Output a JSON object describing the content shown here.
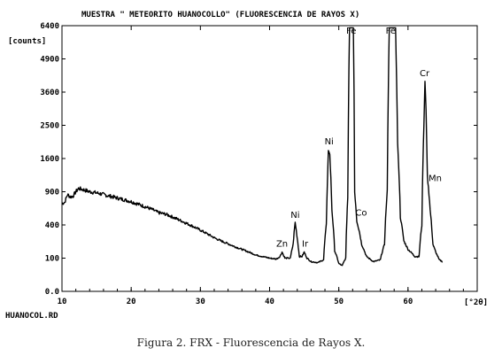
{
  "chart_data": {
    "type": "line",
    "title": "MUESTRA \" METEORITO HUANOCOLLO\" (FLUORESCENCIA DE RAYOS X)",
    "ylabel": "[counts]",
    "xlabel": "[°2θ]",
    "file_label": "HUANOCOL.RD",
    "x_range": [
      10,
      70
    ],
    "y_range": [
      0,
      6400
    ],
    "y_scale": "sqrt",
    "x_ticks": [
      {
        "value": 10,
        "label": "10"
      },
      {
        "value": 20,
        "label": "20"
      },
      {
        "value": 30,
        "label": "30"
      },
      {
        "value": 40,
        "label": "40"
      },
      {
        "value": 50,
        "label": "50"
      },
      {
        "value": 60,
        "label": "60"
      }
    ],
    "y_ticks": [
      {
        "value": 0,
        "label": "0.0"
      },
      {
        "value": 100,
        "label": "100"
      },
      {
        "value": 400,
        "label": "400"
      },
      {
        "value": 900,
        "label": "900"
      },
      {
        "value": 1600,
        "label": "1600"
      },
      {
        "value": 2500,
        "label": "2500"
      },
      {
        "value": 3600,
        "label": "3600"
      },
      {
        "value": 4900,
        "label": "4900"
      },
      {
        "value": 6400,
        "label": "6400"
      }
    ],
    "peaks": [
      {
        "label": "Zn",
        "x": 41.8,
        "y": 140
      },
      {
        "label": "Ni",
        "x": 43.7,
        "y": 420
      },
      {
        "label": "Ir",
        "x": 45.0,
        "y": 140
      },
      {
        "label": "Ni",
        "x": 48.6,
        "y": 1820
      },
      {
        "label": "Fe",
        "x": 51.8,
        "y": 6300
      },
      {
        "label": "Co",
        "x": 52.6,
        "y": 450
      },
      {
        "label": "Fe",
        "x": 57.5,
        "y": 6300
      },
      {
        "label": "Cr",
        "x": 62.4,
        "y": 4000
      },
      {
        "label": "Mn",
        "x": 62.9,
        "y": 1000
      }
    ],
    "series": [
      {
        "values": [
          [
            10.0,
            700
          ],
          [
            10.4,
            720
          ],
          [
            10.8,
            850
          ],
          [
            11.2,
            810
          ],
          [
            11.6,
            820
          ],
          [
            12.0,
            900
          ],
          [
            12.4,
            960
          ],
          [
            13.0,
            940
          ],
          [
            14,
            900
          ],
          [
            15,
            880
          ],
          [
            16,
            850
          ],
          [
            17,
            820
          ],
          [
            18,
            790
          ],
          [
            19,
            760
          ],
          [
            20,
            730
          ],
          [
            21,
            690
          ],
          [
            22,
            650
          ],
          [
            23,
            610
          ],
          [
            24,
            560
          ],
          [
            25,
            540
          ],
          [
            26,
            500
          ],
          [
            27,
            460
          ],
          [
            28,
            420
          ],
          [
            29,
            380
          ],
          [
            30,
            340
          ],
          [
            31,
            300
          ],
          [
            32,
            260
          ],
          [
            33,
            230
          ],
          [
            34,
            205
          ],
          [
            35,
            180
          ],
          [
            36,
            160
          ],
          [
            37,
            140
          ],
          [
            38,
            120
          ],
          [
            39,
            110
          ],
          [
            40,
            100
          ],
          [
            41,
            95
          ],
          [
            41.5,
            110
          ],
          [
            41.8,
            140
          ],
          [
            42.2,
            100
          ],
          [
            43.0,
            100
          ],
          [
            43.4,
            200
          ],
          [
            43.7,
            430
          ],
          [
            44.0,
            250
          ],
          [
            44.3,
            110
          ],
          [
            44.7,
            110
          ],
          [
            45.0,
            140
          ],
          [
            45.4,
            100
          ],
          [
            46.0,
            80
          ],
          [
            47.0,
            75
          ],
          [
            47.8,
            90
          ],
          [
            48.2,
            400
          ],
          [
            48.5,
            1800
          ],
          [
            48.7,
            1700
          ],
          [
            49.0,
            600
          ],
          [
            49.4,
            150
          ],
          [
            50.0,
            70
          ],
          [
            50.5,
            60
          ],
          [
            51.0,
            100
          ],
          [
            51.3,
            800
          ],
          [
            51.55,
            6300
          ],
          [
            52.1,
            6300
          ],
          [
            52.3,
            900
          ],
          [
            52.6,
            450
          ],
          [
            52.9,
            350
          ],
          [
            53.3,
            200
          ],
          [
            54.0,
            110
          ],
          [
            55.0,
            80
          ],
          [
            56.0,
            90
          ],
          [
            56.6,
            200
          ],
          [
            57.0,
            900
          ],
          [
            57.3,
            6300
          ],
          [
            58.2,
            6300
          ],
          [
            58.5,
            2000
          ],
          [
            58.9,
            500
          ],
          [
            59.4,
            230
          ],
          [
            60.0,
            160
          ],
          [
            61.0,
            110
          ],
          [
            61.6,
            110
          ],
          [
            62.0,
            400
          ],
          [
            62.3,
            2500
          ],
          [
            62.45,
            4000
          ],
          [
            62.6,
            3000
          ],
          [
            62.8,
            1200
          ],
          [
            62.95,
            1000
          ],
          [
            63.2,
            600
          ],
          [
            63.6,
            200
          ],
          [
            64.0,
            140
          ],
          [
            64.5,
            90
          ],
          [
            65.0,
            80
          ]
        ]
      }
    ]
  },
  "caption": "Figura 2. FRX - Fluorescencia de Rayos X."
}
